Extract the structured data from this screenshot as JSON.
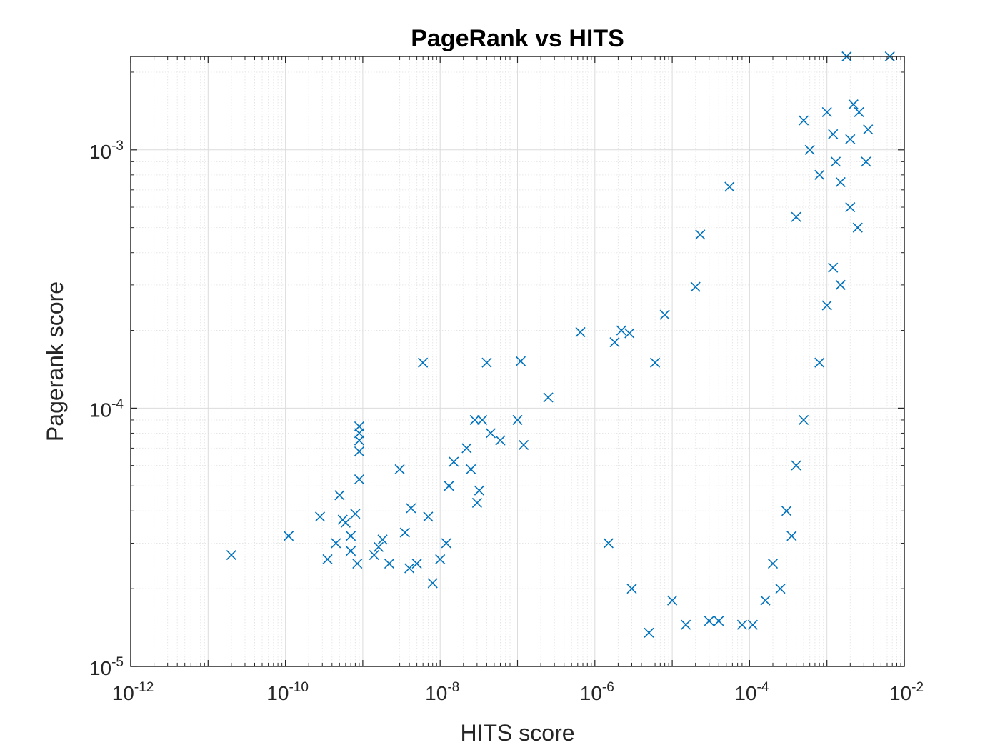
{
  "chart_data": {
    "type": "scatter",
    "title": "PageRank vs HITS",
    "xlabel": "HITS score",
    "ylabel": "Pagerank score",
    "xscale": "log",
    "yscale": "log",
    "xlim": [
      1e-12,
      0.01
    ],
    "ylim": [
      1e-05,
      0.0023
    ],
    "grid": true,
    "minor_grid": true,
    "marker": "x",
    "color": "#0072BD",
    "x_ticks": [
      {
        "base": "10",
        "exp": "-12"
      },
      {
        "base": "10",
        "exp": "-10"
      },
      {
        "base": "10",
        "exp": "-8"
      },
      {
        "base": "10",
        "exp": "-6"
      },
      {
        "base": "10",
        "exp": "-4"
      },
      {
        "base": "10",
        "exp": "-2"
      }
    ],
    "x_tick_values": [
      1e-12,
      1e-10,
      1e-08,
      1e-06,
      0.0001,
      0.01
    ],
    "y_ticks": [
      {
        "base": "10",
        "exp": "-5"
      },
      {
        "base": "10",
        "exp": "-4"
      },
      {
        "base": "10",
        "exp": "-3"
      }
    ],
    "y_tick_values": [
      1e-05,
      0.0001,
      0.001
    ],
    "points": [
      [
        2e-11,
        2.7e-05
      ],
      [
        1.1e-10,
        3.2e-05
      ],
      [
        2.8e-10,
        3.8e-05
      ],
      [
        3.5e-10,
        2.6e-05
      ],
      [
        4.5e-10,
        3e-05
      ],
      [
        5e-10,
        4.6e-05
      ],
      [
        5.5e-10,
        3.7e-05
      ],
      [
        6e-10,
        3.6e-05
      ],
      [
        7e-10,
        3.2e-05
      ],
      [
        7e-10,
        2.8e-05
      ],
      [
        8e-10,
        3.9e-05
      ],
      [
        8.5e-10,
        2.5e-05
      ],
      [
        9e-10,
        5.3e-05
      ],
      [
        9e-10,
        6.8e-05
      ],
      [
        9e-10,
        7.5e-05
      ],
      [
        9e-10,
        8e-05
      ],
      [
        9e-10,
        8.5e-05
      ],
      [
        1.4e-09,
        2.7e-05
      ],
      [
        1.6e-09,
        2.9e-05
      ],
      [
        1.8e-09,
        3.1e-05
      ],
      [
        2.2e-09,
        2.5e-05
      ],
      [
        3e-09,
        5.8e-05
      ],
      [
        3.5e-09,
        3.3e-05
      ],
      [
        4e-09,
        2.4e-05
      ],
      [
        4.2e-09,
        4.1e-05
      ],
      [
        5e-09,
        2.5e-05
      ],
      [
        6e-09,
        0.00015
      ],
      [
        7e-09,
        3.8e-05
      ],
      [
        8e-09,
        2.1e-05
      ],
      [
        1e-08,
        2.6e-05
      ],
      [
        1.2e-08,
        3e-05
      ],
      [
        1.3e-08,
        5e-05
      ],
      [
        1.5e-08,
        6.2e-05
      ],
      [
        2.2e-08,
        7e-05
      ],
      [
        2.5e-08,
        5.8e-05
      ],
      [
        2.8e-08,
        9e-05
      ],
      [
        3e-08,
        4.3e-05
      ],
      [
        3.2e-08,
        4.8e-05
      ],
      [
        3.5e-08,
        9e-05
      ],
      [
        4e-08,
        0.00015
      ],
      [
        4.5e-08,
        8e-05
      ],
      [
        6e-08,
        7.5e-05
      ],
      [
        1.1e-07,
        0.000152
      ],
      [
        1.2e-07,
        7.2e-05
      ],
      [
        1e-07,
        9e-05
      ],
      [
        2.5e-07,
        0.00011
      ],
      [
        6.5e-07,
        0.000197
      ],
      [
        1.8e-06,
        0.00018
      ],
      [
        2.2e-06,
        0.0002
      ],
      [
        2.8e-06,
        0.000195
      ],
      [
        6e-06,
        0.00015
      ],
      [
        8e-06,
        0.00023
      ],
      [
        2e-05,
        0.000295
      ],
      [
        2.3e-05,
        0.00047
      ],
      [
        5.5e-05,
        0.00072
      ],
      [
        5e-06,
        1.35e-05
      ],
      [
        1.5e-05,
        1.45e-05
      ],
      [
        3e-05,
        1.5e-05
      ],
      [
        4e-05,
        1.5e-05
      ],
      [
        8e-05,
        1.45e-05
      ],
      [
        0.00011,
        1.45e-05
      ],
      [
        0.00016,
        1.8e-05
      ],
      [
        0.00025,
        2e-05
      ],
      [
        0.00035,
        3.2e-05
      ],
      [
        0.0004,
        0.00055
      ],
      [
        0.0005,
        0.0013
      ],
      [
        0.0006,
        0.001
      ],
      [
        0.0008,
        0.0008
      ],
      [
        0.001,
        0.0014
      ],
      [
        0.0012,
        0.00115
      ],
      [
        0.0013,
        0.0009
      ],
      [
        0.0015,
        0.00075
      ],
      [
        0.0018,
        0.0023
      ],
      [
        0.002,
        0.0011
      ],
      [
        0.0022,
        0.0015
      ],
      [
        0.0026,
        0.0014
      ],
      [
        0.0032,
        0.0009
      ],
      [
        0.0034,
        0.0012
      ],
      [
        0.0065,
        0.0023
      ],
      [
        0.002,
        0.0006
      ],
      [
        0.0025,
        0.0005
      ],
      [
        0.0012,
        0.00035
      ],
      [
        0.0015,
        0.0003
      ],
      [
        0.001,
        0.00025
      ],
      [
        0.0008,
        0.00015
      ],
      [
        0.0005,
        9e-05
      ],
      [
        0.0004,
        6e-05
      ],
      [
        0.0003,
        4e-05
      ],
      [
        0.0002,
        2.5e-05
      ],
      [
        1.5e-06,
        3e-05
      ],
      [
        3e-06,
        2e-05
      ],
      [
        1e-05,
        1.8e-05
      ]
    ]
  }
}
